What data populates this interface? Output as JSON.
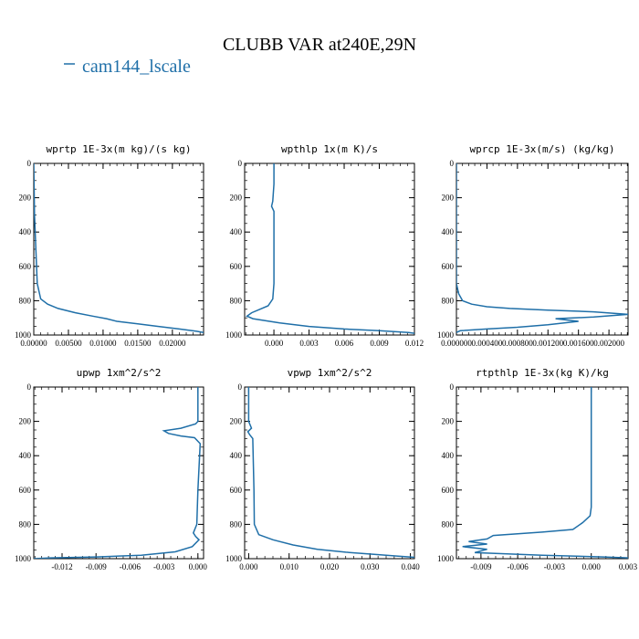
{
  "figure": {
    "title": "CLUBB VAR at240E,29N",
    "legend_label": "cam144_lscale",
    "series_color": "#1f6fa8"
  },
  "chart_data": [
    {
      "type": "line",
      "title": "wprtp  1E-3x(m kg)/(s kg)",
      "xlim": [
        0,
        0.0245
      ],
      "ylim": [
        1000,
        0
      ],
      "x_ticks": [
        0,
        0.005,
        0.01,
        0.015,
        0.02
      ],
      "x_tick_labels": [
        "0.00000",
        "0.00500",
        "0.01000",
        "0.01500",
        "0.02000"
      ],
      "y_ticks": [
        0,
        200,
        400,
        600,
        800,
        1000
      ],
      "y_tick_labels": [
        "0",
        "200",
        "400",
        "600",
        "800",
        "1000"
      ],
      "series": [
        {
          "x": [
            0,
            0.0001,
            0.0005,
            0.001,
            0.002,
            0.0035,
            0.006,
            0.0085,
            0.0105,
            0.012,
            0.015,
            0.018,
            0.021,
            0.0235,
            0.0245
          ],
          "y": [
            0,
            300,
            700,
            790,
            820,
            845,
            870,
            890,
            905,
            920,
            935,
            950,
            965,
            978,
            985
          ]
        }
      ]
    },
    {
      "type": "line",
      "title": "wpthlp  1x(m K)/s",
      "xlim": [
        -0.0025,
        0.012
      ],
      "ylim": [
        1000,
        0
      ],
      "x_ticks": [
        0,
        0.003,
        0.006,
        0.009,
        0.012
      ],
      "x_tick_labels": [
        "0.000",
        "0.003",
        "0.006",
        "0.009",
        "0.012"
      ],
      "y_ticks": [
        0,
        200,
        400,
        600,
        800,
        1000
      ],
      "y_tick_labels": [
        "0",
        "200",
        "400",
        "600",
        "800",
        "1000"
      ],
      "series": [
        {
          "x": [
            0,
            0,
            -0.0001,
            -0.0002,
            0,
            0,
            0,
            -0.0001,
            -0.0005,
            -0.0012,
            -0.0019,
            -0.0023,
            -0.0018,
            0.0005,
            0.003,
            0.006,
            0.009,
            0.0115,
            0.012
          ],
          "y": [
            0,
            120,
            220,
            250,
            280,
            500,
            700,
            790,
            830,
            850,
            870,
            890,
            905,
            930,
            950,
            965,
            975,
            985,
            990
          ]
        }
      ]
    },
    {
      "type": "line",
      "title": "wprcp  1E-3x(m/s) (kg/kg)",
      "xlim": [
        0,
        0.00225
      ],
      "ylim": [
        1000,
        0
      ],
      "x_ticks": [
        0,
        0.0004,
        0.0008,
        0.0012,
        0.0016,
        0.002
      ],
      "x_tick_labels": [
        "0.000000",
        "0.000400",
        "0.000800",
        "0.001200",
        "0.001600",
        "0.002000"
      ],
      "y_ticks": [
        0,
        200,
        400,
        600,
        800,
        1000
      ],
      "y_tick_labels": [
        "0",
        "200",
        "400",
        "600",
        "800",
        "1000"
      ],
      "series": [
        {
          "x": [
            0,
            0,
            3e-05,
            8e-05,
            0.0002,
            0.0004,
            0.0007,
            0.0012,
            0.0018,
            0.00225,
            0.0018,
            0.0013,
            0.0016,
            0.0012,
            0.0008,
            0.0004,
            5e-05,
            0
          ],
          "y": [
            0,
            700,
            760,
            800,
            820,
            835,
            845,
            855,
            865,
            880,
            895,
            905,
            920,
            940,
            955,
            965,
            975,
            985
          ]
        }
      ]
    },
    {
      "type": "line",
      "title": "upwp  1xm^2/s^2",
      "xlim": [
        -0.0145,
        0.0005
      ],
      "ylim": [
        1000,
        0
      ],
      "x_ticks": [
        -0.012,
        -0.009,
        -0.006,
        -0.003,
        0
      ],
      "x_tick_labels": [
        "-0.012",
        "-0.009",
        "-0.006",
        "-0.003",
        "0.000"
      ],
      "y_ticks": [
        0,
        200,
        400,
        600,
        800,
        1000
      ],
      "y_tick_labels": [
        "0",
        "200",
        "400",
        "600",
        "800",
        "1000"
      ],
      "series": [
        {
          "x": [
            0,
            0,
            -0.0002,
            -0.0015,
            -0.003,
            -0.0026,
            -0.0015,
            -0.0003,
            0.0002,
            0,
            -0.0001,
            -0.0004,
            -0.0002,
            0.0001,
            -0.0005,
            -0.002,
            -0.005,
            -0.009,
            -0.013,
            -0.0145
          ],
          "y": [
            0,
            200,
            215,
            240,
            255,
            270,
            285,
            295,
            330,
            600,
            800,
            850,
            870,
            890,
            930,
            960,
            980,
            990,
            995,
            1000
          ]
        }
      ]
    },
    {
      "type": "line",
      "title": "vpwp  1xm^2/s^2",
      "xlim": [
        -0.001,
        0.041
      ],
      "ylim": [
        1000,
        0
      ],
      "x_ticks": [
        0,
        0.01,
        0.02,
        0.03,
        0.04
      ],
      "x_tick_labels": [
        "0.000",
        "0.010",
        "0.020",
        "0.030",
        "0.040"
      ],
      "y_ticks": [
        0,
        200,
        400,
        600,
        800,
        1000
      ],
      "y_tick_labels": [
        "0",
        "200",
        "400",
        "600",
        "800",
        "1000"
      ],
      "series": [
        {
          "x": [
            0,
            0,
            0.0007,
            -0.0002,
            0.0003,
            0.001,
            0.0013,
            0.0014,
            0.0025,
            0.006,
            0.011,
            0.017,
            0.024,
            0.031,
            0.037,
            0.041
          ],
          "y": [
            0,
            200,
            240,
            260,
            280,
            300,
            600,
            800,
            860,
            890,
            920,
            945,
            962,
            975,
            985,
            992
          ]
        }
      ]
    },
    {
      "type": "line",
      "title": "rtpthlp  1E-3x(kg K)/kg",
      "xlim": [
        -0.011,
        0.003
      ],
      "ylim": [
        1000,
        0
      ],
      "x_ticks": [
        -0.009,
        -0.006,
        -0.003,
        0,
        0.003
      ],
      "x_tick_labels": [
        "-0.009",
        "-0.006",
        "-0.003",
        "0.000",
        "0.003"
      ],
      "y_ticks": [
        0,
        200,
        400,
        600,
        800,
        1000
      ],
      "y_tick_labels": [
        "0",
        "200",
        "400",
        "600",
        "800",
        "1000"
      ],
      "series": [
        {
          "x": [
            0,
            0,
            -0.0001,
            -0.0007,
            -0.0015,
            -0.004,
            -0.008,
            -0.0085,
            -0.01,
            -0.0085,
            -0.0105,
            -0.0085,
            -0.0095,
            -0.004,
            0.001,
            0.003
          ],
          "y": [
            0,
            700,
            750,
            790,
            830,
            845,
            865,
            885,
            900,
            915,
            930,
            945,
            965,
            980,
            990,
            995
          ]
        }
      ]
    }
  ]
}
